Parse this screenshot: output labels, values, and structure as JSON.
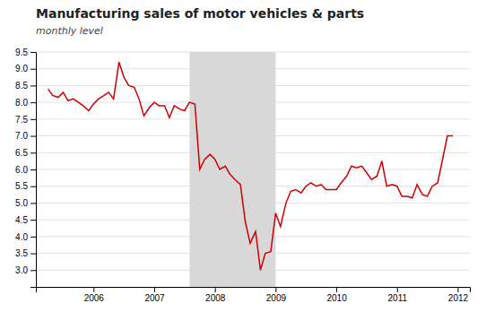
{
  "chart_data": {
    "type": "line",
    "title": "Manufacturing sales of motor vehicles  & parts",
    "subtitle": "monthly level",
    "x": [
      2005.25,
      2005.33,
      2005.42,
      2005.5,
      2005.58,
      2005.67,
      2005.75,
      2005.83,
      2005.92,
      2006.0,
      2006.08,
      2006.17,
      2006.25,
      2006.33,
      2006.42,
      2006.5,
      2006.58,
      2006.67,
      2006.75,
      2006.83,
      2006.92,
      2007.0,
      2007.08,
      2007.17,
      2007.25,
      2007.33,
      2007.42,
      2007.5,
      2007.58,
      2007.67,
      2007.75,
      2007.83,
      2007.92,
      2008.0,
      2008.08,
      2008.17,
      2008.25,
      2008.33,
      2008.42,
      2008.5,
      2008.58,
      2008.67,
      2008.75,
      2008.83,
      2008.92,
      2009.0,
      2009.08,
      2009.17,
      2009.25,
      2009.33,
      2009.42,
      2009.5,
      2009.58,
      2009.67,
      2009.75,
      2009.83,
      2009.92,
      2010.0,
      2010.08,
      2010.17,
      2010.25,
      2010.33,
      2010.42,
      2010.5,
      2010.58,
      2010.67,
      2010.75,
      2010.83,
      2010.92,
      2011.0,
      2011.08,
      2011.17,
      2011.25,
      2011.33,
      2011.42,
      2011.5,
      2011.58,
      2011.67,
      2011.75,
      2011.83,
      2011.92
    ],
    "values": [
      8.4,
      8.2,
      8.15,
      8.3,
      8.05,
      8.1,
      8.0,
      7.9,
      7.75,
      7.95,
      8.1,
      8.2,
      8.3,
      8.1,
      9.2,
      8.75,
      8.5,
      8.45,
      8.1,
      7.6,
      7.85,
      8.0,
      7.9,
      7.9,
      7.55,
      7.9,
      7.8,
      7.75,
      8.0,
      7.95,
      6.0,
      6.3,
      6.45,
      6.3,
      6.0,
      6.1,
      5.85,
      5.7,
      5.55,
      4.45,
      3.8,
      4.15,
      3.0,
      3.5,
      3.55,
      4.7,
      4.3,
      5.0,
      5.35,
      5.4,
      5.3,
      5.5,
      5.6,
      5.5,
      5.55,
      5.4,
      5.4,
      5.4,
      5.6,
      5.8,
      6.1,
      6.05,
      6.1,
      5.9,
      5.7,
      5.8,
      6.25,
      5.5,
      5.55,
      5.5,
      5.2,
      5.2,
      5.15,
      5.55,
      5.25,
      5.2,
      5.5,
      5.6,
      6.3,
      7.0,
      7.0
    ],
    "color": "#cc0000",
    "shaded_regions": [
      {
        "x0": 2007.583,
        "x1": 2009.0,
        "color": "#d8d8d8"
      }
    ],
    "xlim": [
      2005.05,
      2012.2
    ],
    "xticks": [
      2006,
      2007,
      2008,
      2009,
      2010,
      2011,
      2012
    ],
    "ylim": [
      2.5,
      9.5
    ],
    "yticks": [
      {
        "value": 3.0,
        "label": "3.0"
      },
      3.5,
      {
        "value": 4.0,
        "label": "4.0"
      },
      4.5,
      {
        "value": 5.0,
        "label": "5.0"
      },
      5.5,
      {
        "value": 6.0,
        "label": "6.0"
      },
      6.5,
      {
        "value": 7.0,
        "label": "7.0"
      },
      7.5,
      {
        "value": 8.0,
        "label": "8.0"
      },
      8.5,
      {
        "value": 9.0,
        "label": "9.0"
      },
      9.5
    ],
    "grid": true
  }
}
